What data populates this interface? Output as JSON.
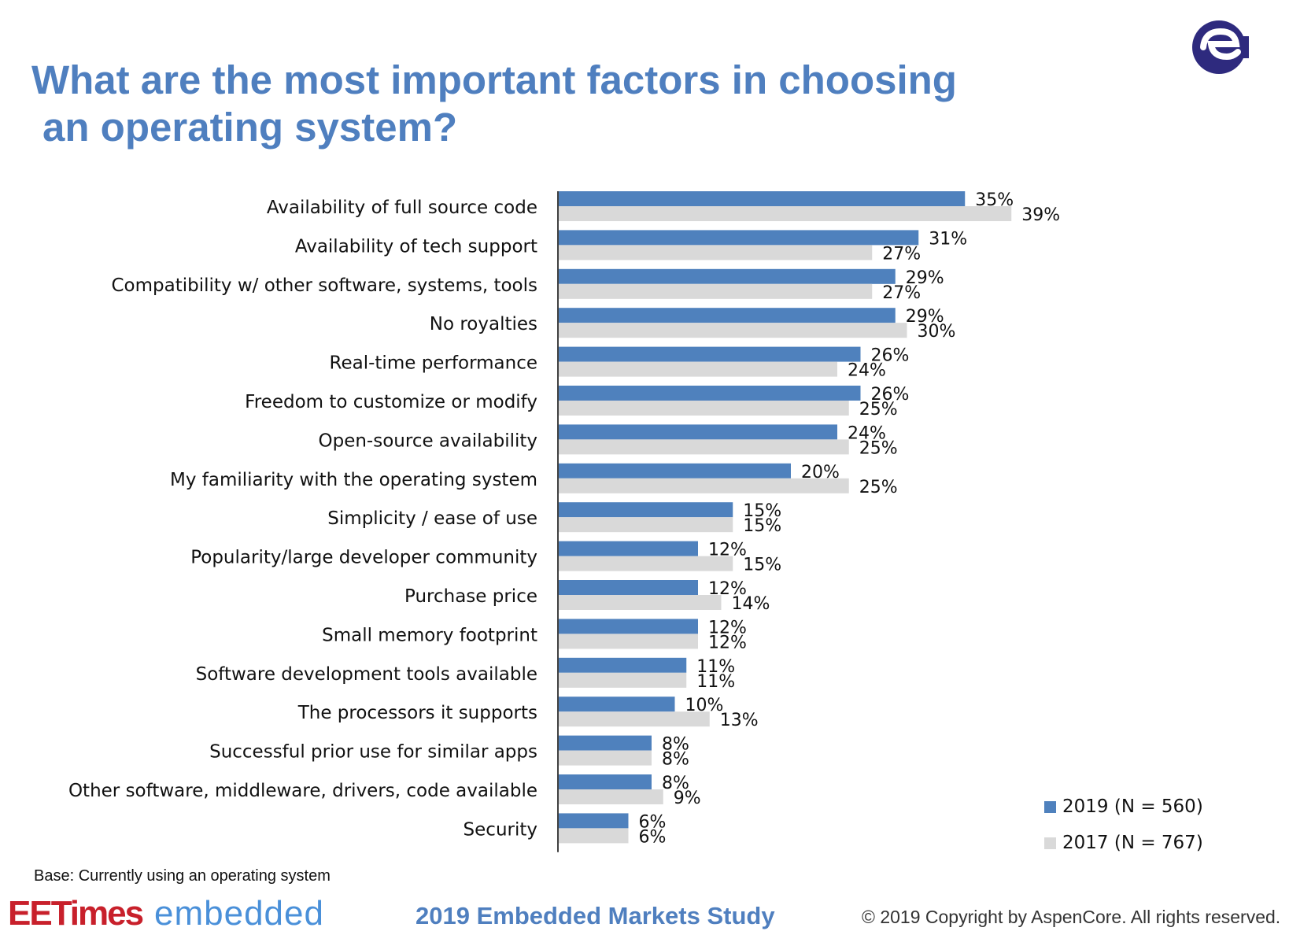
{
  "title_line1": "What are the most important factors in choosing",
  "title_line2": "an operating system?",
  "base_note": "Base: Currently using an operating system",
  "footer": {
    "brand_eetimes": "EETimes",
    "brand_embedded": "embedded",
    "study": "2019 Embedded Markets Study",
    "copyright": "© 2019 Copyright by AspenCore. All rights reserved."
  },
  "logo": {
    "icon": "aspencore-logo-icon",
    "color": "#2e2a7e"
  },
  "chart_data": {
    "type": "bar",
    "orientation": "horizontal",
    "categories": [
      "Availability of full source code",
      "Availability of tech support",
      "Compatibility w/ other software, systems, tools",
      "No royalties",
      "Real-time performance",
      "Freedom to customize or modify",
      "Open-source availability",
      "My familiarity with the operating system",
      "Simplicity / ease of use",
      "Popularity/large developer community",
      "Purchase price",
      "Small memory footprint",
      "Software development tools available",
      "The processors it supports",
      "Successful prior use for similar apps",
      "Other software, middleware, drivers, code available",
      "Security"
    ],
    "series": [
      {
        "name": "2019 (N = 560)",
        "color": "#4f81bd",
        "values": [
          35,
          31,
          29,
          29,
          26,
          26,
          24,
          20,
          15,
          12,
          12,
          12,
          11,
          10,
          8,
          8,
          6
        ],
        "labels": [
          "35%",
          "31%",
          "29%",
          "29%",
          "26%",
          "26%",
          "24%",
          "20%",
          "15%",
          "12%",
          "12%",
          "12%",
          "11%",
          "10%",
          "8%",
          "8%",
          "6%"
        ]
      },
      {
        "name": "2017 (N = 767)",
        "color": "#d9d9d9",
        "values": [
          39,
          27,
          27,
          30,
          24,
          25,
          25,
          25,
          15,
          15,
          14,
          12,
          11,
          13,
          8,
          9,
          6
        ],
        "labels": [
          "39%",
          "27%",
          "27%",
          "30%",
          "24%",
          "25%",
          "25%",
          "25%",
          "15%",
          "15%",
          "14%",
          "12%",
          "11%",
          "13%",
          "8%",
          "9%",
          "6%"
        ]
      }
    ],
    "xlim": [
      0,
      40
    ],
    "grid": false,
    "legend_position": "bottom-right"
  }
}
